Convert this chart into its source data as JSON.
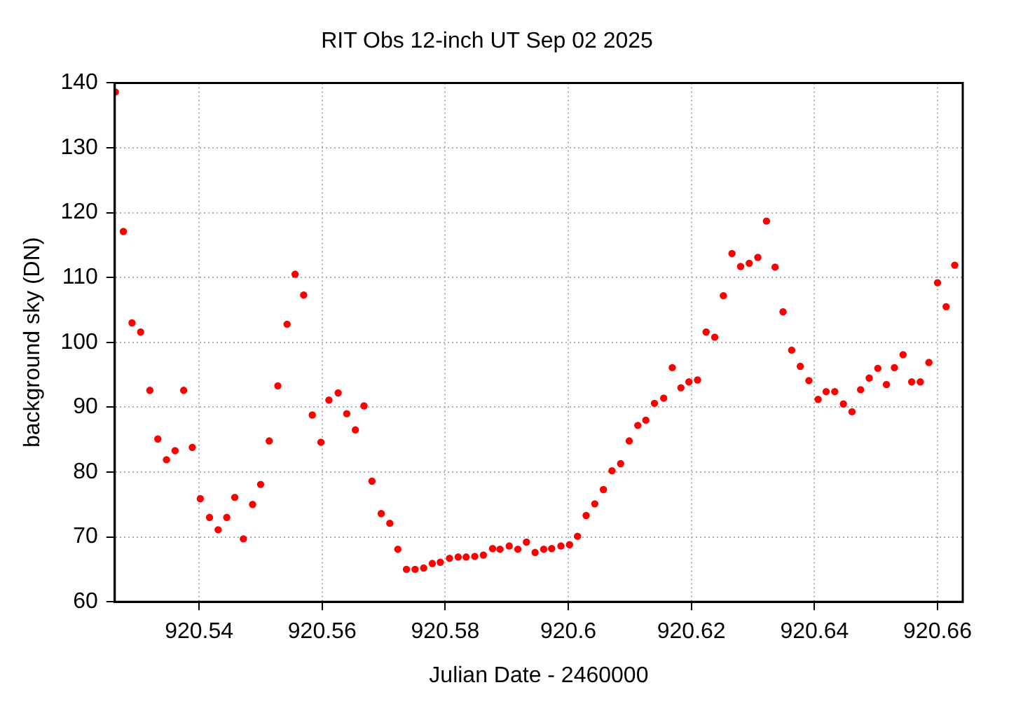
{
  "chart_data": {
    "type": "scatter",
    "title": "RIT Obs 12-inch UT Sep 02 2025",
    "xlabel": "Julian Date - 2460000",
    "ylabel": "background sky (DN)",
    "xlim": [
      920.5263,
      920.6641
    ],
    "xticks": [
      920.54,
      920.56,
      920.58,
      920.6,
      920.62,
      920.64,
      920.66
    ],
    "ylim": [
      60,
      140
    ],
    "yticks": [
      60,
      70,
      80,
      90,
      100,
      110,
      120,
      130,
      140
    ],
    "grid": true,
    "marker": "circle",
    "series": [
      {
        "color": "#ff0000",
        "x": [
          920.5264,
          920.5277,
          920.5291,
          920.5305,
          920.532,
          920.5333,
          920.5347,
          920.5361,
          920.5375,
          920.5389,
          920.5402,
          920.5417,
          920.5431,
          920.5445,
          920.5458,
          920.5472,
          920.5487,
          920.55,
          920.5514,
          920.5528,
          920.5543,
          920.5556,
          920.557,
          920.5584,
          920.5598,
          920.5611,
          920.5626,
          920.564,
          920.5654,
          920.5668,
          920.5681,
          920.5696,
          920.571,
          920.5723,
          920.5737,
          920.5751,
          920.5765,
          920.5779,
          920.5792,
          920.5807,
          920.5821,
          920.5834,
          920.5848,
          920.5862,
          920.5877,
          920.5889,
          920.5904,
          920.5918,
          920.5932,
          920.5946,
          920.596,
          920.5973,
          920.5988,
          920.6002,
          920.6015,
          920.6029,
          920.6043,
          920.6057,
          920.6071,
          920.6085,
          920.6099,
          920.6113,
          920.6126,
          920.614,
          920.6155,
          920.6169,
          920.6183,
          920.6196,
          920.621,
          920.6224,
          920.6238,
          920.6252,
          920.6266,
          920.628,
          920.6294,
          920.6308,
          920.6322,
          920.6336,
          920.6349,
          920.6363,
          920.6377,
          920.6391,
          920.6406,
          920.6419,
          920.6433,
          920.6447,
          920.6461,
          920.6475,
          920.6489,
          920.6503,
          920.6517,
          920.653,
          920.6544,
          920.6558,
          920.6572,
          920.6586,
          920.66,
          920.6614,
          920.6628
        ],
        "values": [
          138.6,
          117.1,
          103.0,
          101.6,
          92.6,
          85.1,
          81.9,
          83.3,
          92.6,
          83.8,
          75.9,
          73.0,
          71.1,
          73.0,
          76.1,
          69.7,
          75.0,
          78.1,
          84.8,
          93.3,
          102.8,
          110.5,
          107.3,
          88.8,
          84.6,
          91.1,
          92.2,
          89.0,
          86.5,
          90.2,
          78.6,
          73.6,
          72.1,
          68.1,
          65.0,
          65.0,
          65.2,
          65.9,
          66.1,
          66.7,
          66.9,
          66.9,
          67.0,
          67.2,
          68.2,
          68.1,
          68.6,
          68.1,
          69.2,
          67.6,
          68.1,
          68.2,
          68.6,
          68.8,
          70.1,
          73.3,
          75.1,
          77.3,
          80.2,
          81.3,
          84.8,
          87.2,
          88.0,
          90.6,
          91.4,
          96.1,
          93.0,
          93.9,
          94.2,
          101.6,
          100.8,
          107.2,
          113.7,
          111.7,
          112.2,
          113.1,
          118.7,
          111.6,
          104.7,
          98.8,
          96.3,
          94.1,
          91.2,
          92.4,
          92.4,
          90.5,
          89.3,
          92.7,
          94.5,
          96.0,
          93.5,
          96.1,
          98.1,
          93.9,
          93.9,
          96.9,
          109.2,
          105.5,
          111.9
        ]
      }
    ]
  }
}
